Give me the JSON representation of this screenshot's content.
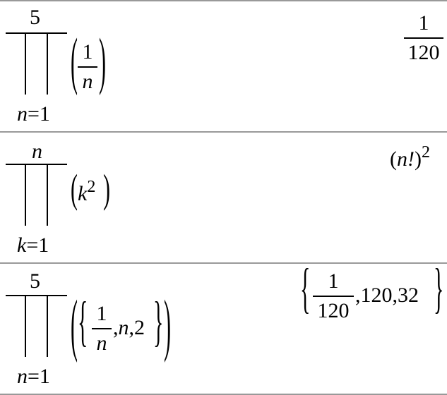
{
  "entries": [
    {
      "upper": "5",
      "index_var": "n",
      "eq": "=",
      "lower": "1",
      "num": "1",
      "den": "n",
      "result_num": "1",
      "result_den": "120"
    },
    {
      "upper": "n",
      "index_var": "k",
      "eq": "=",
      "lower": "1",
      "base": "k",
      "exp": "2",
      "result_base": "n!",
      "result_exp": "2"
    },
    {
      "upper": "5",
      "index_var": "n",
      "eq": "=",
      "lower": "1",
      "num": "1",
      "den": "n",
      "item2": "n",
      "item3": "2",
      "result_num": "1",
      "result_den": "120",
      "result_rest": ",120,32"
    }
  ]
}
